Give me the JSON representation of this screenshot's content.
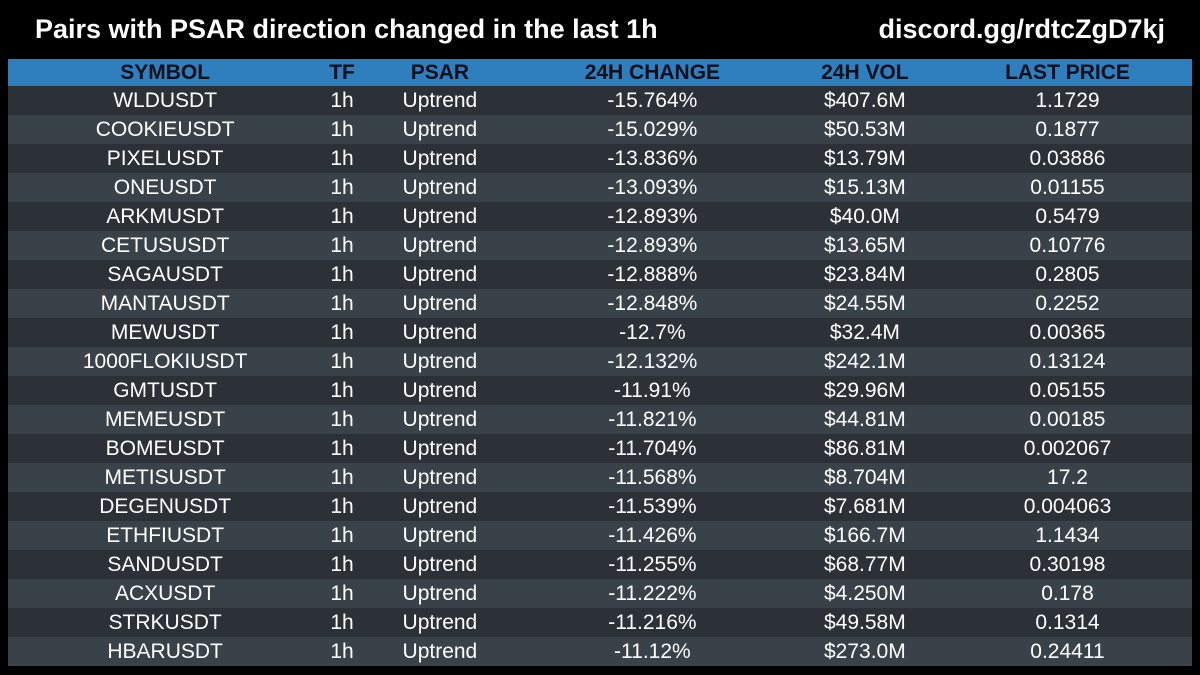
{
  "header": {
    "title": "Pairs with PSAR direction changed in the last 1h",
    "link": "discord.gg/rdtcZgD7kj"
  },
  "colors": {
    "background": "#000000",
    "header_row": "#2f7fbf",
    "row_dark": "#2b3137",
    "row_light": "#3a4249"
  },
  "table": {
    "columns": [
      "SYMBOL",
      "TF",
      "PSAR",
      "24H CHANGE",
      "24H VOL",
      "LAST PRICE"
    ],
    "rows": [
      [
        "WLDUSDT",
        "1h",
        "Uptrend",
        "-15.764%",
        "$407.6M",
        "1.1729"
      ],
      [
        "COOKIEUSDT",
        "1h",
        "Uptrend",
        "-15.029%",
        "$50.53M",
        "0.1877"
      ],
      [
        "PIXELUSDT",
        "1h",
        "Uptrend",
        "-13.836%",
        "$13.79M",
        "0.03886"
      ],
      [
        "ONEUSDT",
        "1h",
        "Uptrend",
        "-13.093%",
        "$15.13M",
        "0.01155"
      ],
      [
        "ARKMUSDT",
        "1h",
        "Uptrend",
        "-12.893%",
        "$40.0M",
        "0.5479"
      ],
      [
        "CETUSUSDT",
        "1h",
        "Uptrend",
        "-12.893%",
        "$13.65M",
        "0.10776"
      ],
      [
        "SAGAUSDT",
        "1h",
        "Uptrend",
        "-12.888%",
        "$23.84M",
        "0.2805"
      ],
      [
        "MANTAUSDT",
        "1h",
        "Uptrend",
        "-12.848%",
        "$24.55M",
        "0.2252"
      ],
      [
        "MEWUSDT",
        "1h",
        "Uptrend",
        "-12.7%",
        "$32.4M",
        "0.00365"
      ],
      [
        "1000FLOKIUSDT",
        "1h",
        "Uptrend",
        "-12.132%",
        "$242.1M",
        "0.13124"
      ],
      [
        "GMTUSDT",
        "1h",
        "Uptrend",
        "-11.91%",
        "$29.96M",
        "0.05155"
      ],
      [
        "MEMEUSDT",
        "1h",
        "Uptrend",
        "-11.821%",
        "$44.81M",
        "0.00185"
      ],
      [
        "BOMEUSDT",
        "1h",
        "Uptrend",
        "-11.704%",
        "$86.81M",
        "0.002067"
      ],
      [
        "METISUSDT",
        "1h",
        "Uptrend",
        "-11.568%",
        "$8.704M",
        "17.2"
      ],
      [
        "DEGENUSDT",
        "1h",
        "Uptrend",
        "-11.539%",
        "$7.681M",
        "0.004063"
      ],
      [
        "ETHFIUSDT",
        "1h",
        "Uptrend",
        "-11.426%",
        "$166.7M",
        "1.1434"
      ],
      [
        "SANDUSDT",
        "1h",
        "Uptrend",
        "-11.255%",
        "$68.77M",
        "0.30198"
      ],
      [
        "ACXUSDT",
        "1h",
        "Uptrend",
        "-11.222%",
        "$4.250M",
        "0.178"
      ],
      [
        "STRKUSDT",
        "1h",
        "Uptrend",
        "-11.216%",
        "$49.58M",
        "0.1314"
      ],
      [
        "HBARUSDT",
        "1h",
        "Uptrend",
        "-11.12%",
        "$273.0M",
        "0.24411"
      ]
    ]
  }
}
